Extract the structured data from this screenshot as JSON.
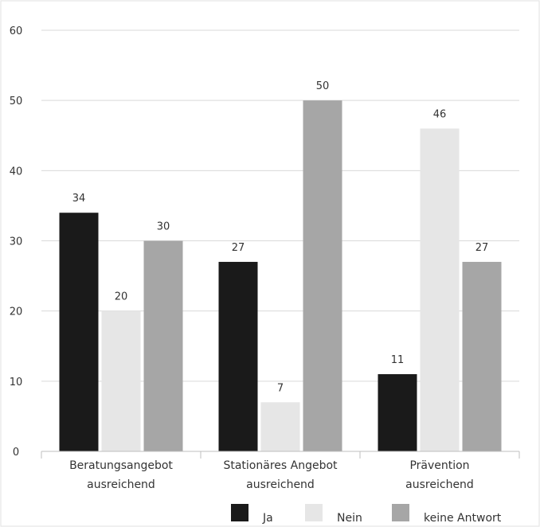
{
  "chart_data": {
    "type": "bar",
    "title": "",
    "xlabel": "",
    "ylabel": "",
    "ylim": [
      0,
      60
    ],
    "yticks": [
      0,
      10,
      20,
      30,
      40,
      50,
      60
    ],
    "ytick_labels": [
      "0",
      "10",
      "20",
      "30",
      "40",
      "50",
      "60"
    ],
    "grid": true,
    "legend_position": "bottom-right",
    "categories": [
      [
        "Beratungsangebot",
        "ausreichend"
      ],
      [
        "Stationäres Angebot",
        "ausreichend"
      ],
      [
        "Prävention",
        "ausreichend"
      ]
    ],
    "series": [
      {
        "name": "Ja",
        "color": "#1a1a1a",
        "values": [
          34,
          27,
          11
        ]
      },
      {
        "name": "Nein",
        "color": "#e6e6e6",
        "values": [
          20,
          7,
          46
        ]
      },
      {
        "name": "keine Antwort",
        "color": "#a6a6a6",
        "values": [
          30,
          50,
          27
        ]
      }
    ]
  }
}
